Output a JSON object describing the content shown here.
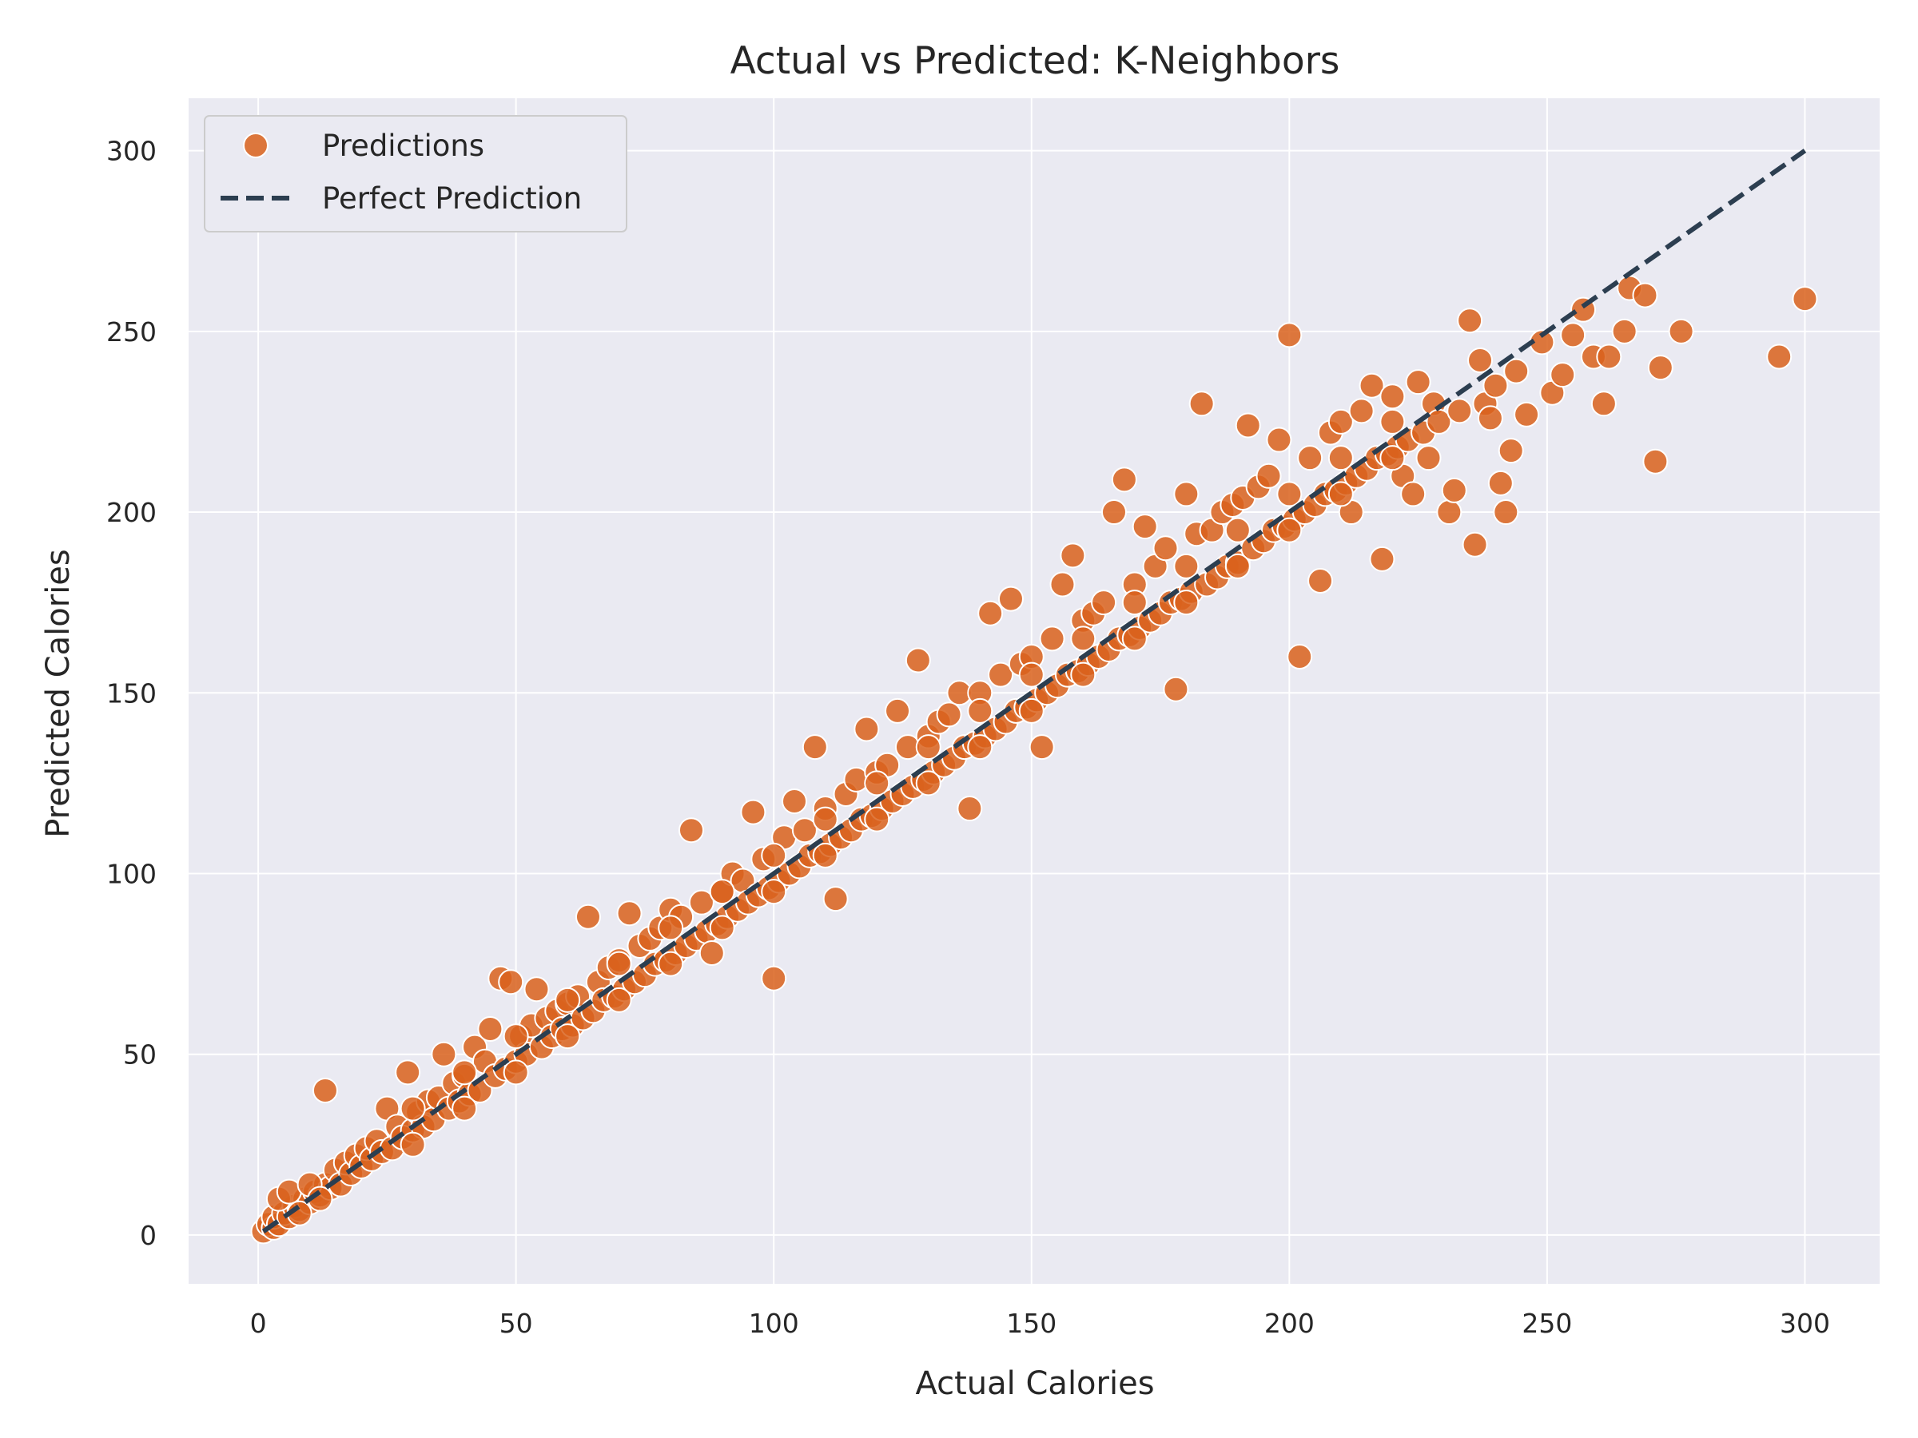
{
  "chart_data": {
    "type": "scatter",
    "title": "Actual vs Predicted: K-Neighbors",
    "xlabel": "Actual Calories",
    "ylabel": "Predicted Calories",
    "xlim": [
      -13.5,
      314.5
    ],
    "ylim": [
      -13.5,
      314.5
    ],
    "xticks": [
      0,
      50,
      100,
      150,
      200,
      250,
      300
    ],
    "yticks": [
      0,
      50,
      100,
      150,
      200,
      250,
      300
    ],
    "grid": true,
    "legend_placement": "top-left",
    "colors": {
      "points": "#d9611c",
      "point_edge": "#ffffff",
      "perfect_line": "#2c3e50",
      "plot_background": "#eaeaf2",
      "grid": "#ffffff"
    },
    "series": [
      {
        "name": "Predictions",
        "type": "scatter",
        "points": [
          [
            1,
            1
          ],
          [
            2,
            3
          ],
          [
            3,
            2
          ],
          [
            3,
            5
          ],
          [
            4,
            3
          ],
          [
            5,
            6
          ],
          [
            6,
            5
          ],
          [
            7,
            8
          ],
          [
            8,
            7
          ],
          [
            9,
            10
          ],
          [
            10,
            9
          ],
          [
            11,
            12
          ],
          [
            12,
            11
          ],
          [
            13,
            14
          ],
          [
            14,
            13
          ],
          [
            4,
            10
          ],
          [
            6,
            12
          ],
          [
            8,
            6
          ],
          [
            10,
            14
          ],
          [
            12,
            10
          ],
          [
            13,
            40
          ],
          [
            15,
            18
          ],
          [
            16,
            14
          ],
          [
            17,
            20
          ],
          [
            18,
            17
          ],
          [
            19,
            22
          ],
          [
            20,
            19
          ],
          [
            21,
            24
          ],
          [
            22,
            21
          ],
          [
            23,
            26
          ],
          [
            24,
            23
          ],
          [
            25,
            35
          ],
          [
            26,
            24
          ],
          [
            27,
            30
          ],
          [
            28,
            27
          ],
          [
            29,
            45
          ],
          [
            30,
            29
          ],
          [
            31,
            34
          ],
          [
            32,
            30
          ],
          [
            33,
            37
          ],
          [
            34,
            32
          ],
          [
            35,
            38
          ],
          [
            36,
            50
          ],
          [
            37,
            35
          ],
          [
            38,
            42
          ],
          [
            39,
            37
          ],
          [
            40,
            44
          ],
          [
            41,
            39
          ],
          [
            42,
            52
          ],
          [
            43,
            40
          ],
          [
            44,
            48
          ],
          [
            45,
            57
          ],
          [
            46,
            44
          ],
          [
            47,
            71
          ],
          [
            48,
            46
          ],
          [
            49,
            70
          ],
          [
            50,
            48
          ],
          [
            51,
            55
          ],
          [
            52,
            50
          ],
          [
            53,
            58
          ],
          [
            54,
            68
          ],
          [
            55,
            52
          ],
          [
            56,
            60
          ],
          [
            57,
            55
          ],
          [
            58,
            62
          ],
          [
            59,
            57
          ],
          [
            60,
            64
          ],
          [
            61,
            58
          ],
          [
            62,
            66
          ],
          [
            63,
            60
          ],
          [
            64,
            88
          ],
          [
            65,
            62
          ],
          [
            66,
            70
          ],
          [
            67,
            65
          ],
          [
            68,
            74
          ],
          [
            69,
            66
          ],
          [
            70,
            76
          ],
          [
            71,
            68
          ],
          [
            72,
            89
          ],
          [
            73,
            70
          ],
          [
            74,
            80
          ],
          [
            75,
            72
          ],
          [
            76,
            82
          ],
          [
            77,
            75
          ],
          [
            78,
            85
          ],
          [
            79,
            76
          ],
          [
            80,
            90
          ],
          [
            81,
            78
          ],
          [
            82,
            88
          ],
          [
            83,
            80
          ],
          [
            84,
            112
          ],
          [
            85,
            82
          ],
          [
            86,
            92
          ],
          [
            87,
            84
          ],
          [
            88,
            78
          ],
          [
            89,
            86
          ],
          [
            90,
            95
          ],
          [
            91,
            88
          ],
          [
            92,
            100
          ],
          [
            93,
            90
          ],
          [
            94,
            98
          ],
          [
            95,
            92
          ],
          [
            96,
            117
          ],
          [
            97,
            94
          ],
          [
            98,
            104
          ],
          [
            99,
            96
          ],
          [
            100,
            71
          ],
          [
            101,
            98
          ],
          [
            102,
            110
          ],
          [
            103,
            100
          ],
          [
            104,
            120
          ],
          [
            105,
            102
          ],
          [
            106,
            112
          ],
          [
            107,
            105
          ],
          [
            108,
            135
          ],
          [
            109,
            106
          ],
          [
            110,
            118
          ],
          [
            111,
            108
          ],
          [
            112,
            93
          ],
          [
            113,
            110
          ],
          [
            114,
            122
          ],
          [
            115,
            112
          ],
          [
            116,
            126
          ],
          [
            117,
            115
          ],
          [
            118,
            140
          ],
          [
            119,
            116
          ],
          [
            120,
            128
          ],
          [
            121,
            118
          ],
          [
            122,
            130
          ],
          [
            123,
            120
          ],
          [
            124,
            145
          ],
          [
            125,
            122
          ],
          [
            126,
            135
          ],
          [
            127,
            124
          ],
          [
            128,
            159
          ],
          [
            129,
            126
          ],
          [
            130,
            138
          ],
          [
            131,
            128
          ],
          [
            132,
            142
          ],
          [
            133,
            130
          ],
          [
            134,
            144
          ],
          [
            135,
            132
          ],
          [
            136,
            150
          ],
          [
            137,
            135
          ],
          [
            138,
            118
          ],
          [
            139,
            136
          ],
          [
            140,
            150
          ],
          [
            141,
            138
          ],
          [
            142,
            172
          ],
          [
            143,
            140
          ],
          [
            144,
            155
          ],
          [
            145,
            142
          ],
          [
            146,
            176
          ],
          [
            147,
            145
          ],
          [
            148,
            158
          ],
          [
            149,
            146
          ],
          [
            150,
            160
          ],
          [
            151,
            148
          ],
          [
            152,
            135
          ],
          [
            153,
            150
          ],
          [
            154,
            165
          ],
          [
            155,
            152
          ],
          [
            156,
            180
          ],
          [
            157,
            155
          ],
          [
            158,
            188
          ],
          [
            159,
            156
          ],
          [
            160,
            170
          ],
          [
            161,
            158
          ],
          [
            162,
            172
          ],
          [
            163,
            160
          ],
          [
            164,
            175
          ],
          [
            165,
            162
          ],
          [
            166,
            200
          ],
          [
            167,
            165
          ],
          [
            168,
            209
          ],
          [
            169,
            166
          ],
          [
            170,
            180
          ],
          [
            171,
            168
          ],
          [
            172,
            196
          ],
          [
            173,
            170
          ],
          [
            174,
            185
          ],
          [
            175,
            172
          ],
          [
            176,
            190
          ],
          [
            177,
            175
          ],
          [
            178,
            151
          ],
          [
            179,
            176
          ],
          [
            180,
            205
          ],
          [
            181,
            178
          ],
          [
            182,
            194
          ],
          [
            183,
            230
          ],
          [
            184,
            180
          ],
          [
            185,
            195
          ],
          [
            186,
            182
          ],
          [
            187,
            200
          ],
          [
            188,
            185
          ],
          [
            189,
            202
          ],
          [
            190,
            186
          ],
          [
            191,
            204
          ],
          [
            192,
            224
          ],
          [
            193,
            190
          ],
          [
            194,
            207
          ],
          [
            195,
            192
          ],
          [
            196,
            210
          ],
          [
            197,
            195
          ],
          [
            198,
            220
          ],
          [
            199,
            196
          ],
          [
            200,
            249
          ],
          [
            201,
            198
          ],
          [
            202,
            160
          ],
          [
            203,
            200
          ],
          [
            204,
            215
          ],
          [
            205,
            202
          ],
          [
            206,
            181
          ],
          [
            207,
            205
          ],
          [
            208,
            222
          ],
          [
            209,
            206
          ],
          [
            210,
            225
          ],
          [
            211,
            208
          ],
          [
            212,
            200
          ],
          [
            213,
            210
          ],
          [
            214,
            228
          ],
          [
            215,
            212
          ],
          [
            216,
            235
          ],
          [
            217,
            215
          ],
          [
            218,
            187
          ],
          [
            219,
            216
          ],
          [
            220,
            232
          ],
          [
            221,
            218
          ],
          [
            222,
            210
          ],
          [
            223,
            220
          ],
          [
            224,
            205
          ],
          [
            225,
            236
          ],
          [
            226,
            222
          ],
          [
            227,
            215
          ],
          [
            228,
            230
          ],
          [
            229,
            225
          ],
          [
            231,
            200
          ],
          [
            232,
            206
          ],
          [
            233,
            228
          ],
          [
            235,
            253
          ],
          [
            236,
            191
          ],
          [
            237,
            242
          ],
          [
            238,
            230
          ],
          [
            239,
            226
          ],
          [
            240,
            235
          ],
          [
            241,
            208
          ],
          [
            242,
            200
          ],
          [
            243,
            217
          ],
          [
            244,
            239
          ],
          [
            246,
            227
          ],
          [
            249,
            247
          ],
          [
            251,
            233
          ],
          [
            253,
            238
          ],
          [
            255,
            249
          ],
          [
            257,
            256
          ],
          [
            259,
            243
          ],
          [
            261,
            230
          ],
          [
            262,
            243
          ],
          [
            265,
            250
          ],
          [
            266,
            262
          ],
          [
            269,
            260
          ],
          [
            271,
            214
          ],
          [
            272,
            240
          ],
          [
            276,
            250
          ],
          [
            295,
            243
          ],
          [
            300,
            259
          ],
          [
            30,
            25
          ],
          [
            40,
            35
          ],
          [
            50,
            45
          ],
          [
            60,
            55
          ],
          [
            70,
            65
          ],
          [
            80,
            75
          ],
          [
            90,
            85
          ],
          [
            100,
            95
          ],
          [
            110,
            105
          ],
          [
            120,
            115
          ],
          [
            130,
            125
          ],
          [
            140,
            135
          ],
          [
            150,
            145
          ],
          [
            160,
            155
          ],
          [
            170,
            165
          ],
          [
            180,
            175
          ],
          [
            190,
            185
          ],
          [
            200,
            195
          ],
          [
            210,
            205
          ],
          [
            220,
            215
          ],
          [
            30,
            35
          ],
          [
            40,
            45
          ],
          [
            50,
            55
          ],
          [
            60,
            65
          ],
          [
            70,
            75
          ],
          [
            80,
            85
          ],
          [
            90,
            95
          ],
          [
            100,
            105
          ],
          [
            110,
            115
          ],
          [
            120,
            125
          ],
          [
            130,
            135
          ],
          [
            140,
            145
          ],
          [
            150,
            155
          ],
          [
            160,
            165
          ],
          [
            170,
            175
          ],
          [
            180,
            185
          ],
          [
            190,
            195
          ],
          [
            200,
            205
          ],
          [
            210,
            215
          ],
          [
            220,
            225
          ]
        ]
      },
      {
        "name": "Perfect Prediction",
        "type": "line",
        "style": "dashed",
        "points": [
          [
            1,
            1
          ],
          [
            300,
            300
          ]
        ]
      }
    ]
  }
}
